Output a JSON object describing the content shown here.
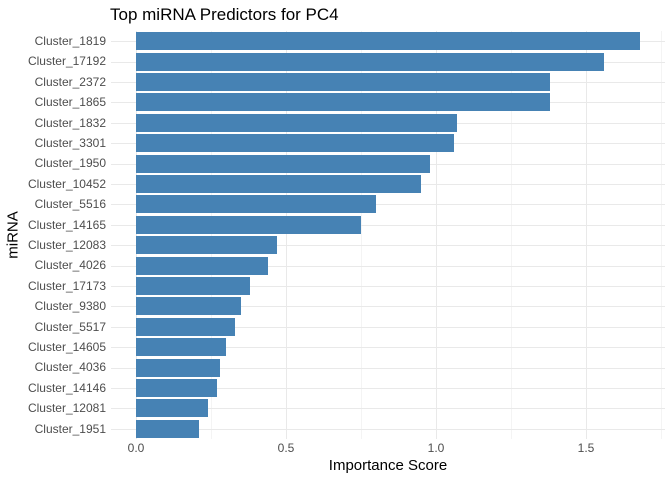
{
  "chart_data": {
    "type": "bar",
    "orientation": "horizontal",
    "title": "Top miRNA Predictors for PC4",
    "xlabel": "Importance Score",
    "ylabel": "miRNA",
    "categories": [
      "Cluster_1819",
      "Cluster_17192",
      "Cluster_2372",
      "Cluster_1865",
      "Cluster_1832",
      "Cluster_3301",
      "Cluster_1950",
      "Cluster_10452",
      "Cluster_5516",
      "Cluster_14165",
      "Cluster_12083",
      "Cluster_4026",
      "Cluster_17173",
      "Cluster_9380",
      "Cluster_5517",
      "Cluster_14605",
      "Cluster_4036",
      "Cluster_14146",
      "Cluster_12081",
      "Cluster_1951"
    ],
    "values": [
      1.68,
      1.56,
      1.38,
      1.38,
      1.07,
      1.06,
      0.98,
      0.95,
      0.8,
      0.75,
      0.47,
      0.44,
      0.38,
      0.35,
      0.33,
      0.3,
      0.28,
      0.27,
      0.24,
      0.21
    ],
    "x_ticks": [
      0.0,
      0.5,
      1.0,
      1.5
    ],
    "x_tick_labels": [
      "0.0",
      "0.5",
      "1.0",
      "1.5"
    ],
    "x_minor_ticks": [
      0.25,
      0.75,
      1.25,
      1.75
    ],
    "xlim": [
      -0.084,
      1.764
    ],
    "grid": true,
    "legend_position": "none",
    "colors": {
      "bar": "#4682b4",
      "grid_major": "#e9e9e9",
      "grid_minor": "#f4f4f4",
      "tick_label": "#4d4d4d",
      "text": "#000000",
      "background": "#ffffff"
    }
  }
}
